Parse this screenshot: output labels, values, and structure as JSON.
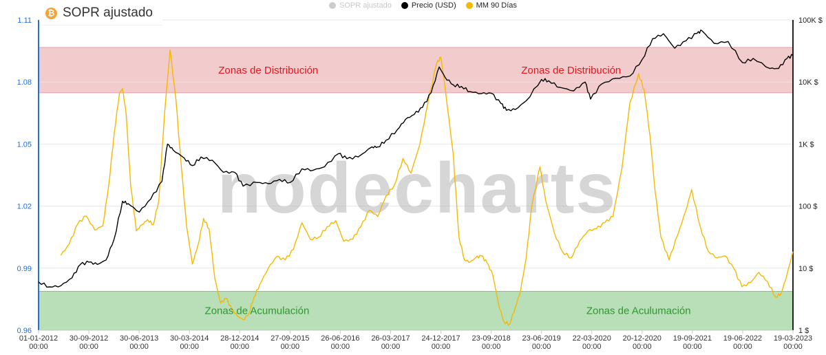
{
  "title": "SOPR ajustado",
  "icon": "bitcoin-icon",
  "watermark": "nodecharts",
  "legend": [
    {
      "name": "SOPR ajustado",
      "color": "#cccccc",
      "state": "hidden"
    },
    {
      "name": "Precio (USD)",
      "color": "#000000",
      "state": "visible"
    },
    {
      "name": "MM 90 Días",
      "color": "#f5b800",
      "state": "visible"
    }
  ],
  "zones": [
    {
      "label": "Zonas de Distribución",
      "color": "#e8a0a4",
      "text_color": "#e8141c",
      "y_range": [
        1.0748,
        1.0967
      ],
      "x_center": "2015-06-01"
    },
    {
      "label": "Zonas de Distribución",
      "color": "#e8a0a4",
      "text_color": "#e8141c",
      "y_range": [
        1.0748,
        1.0967
      ],
      "x_center": "2019-12-01"
    },
    {
      "label": "Zonas de Acumulación",
      "color": "#7ec47e",
      "text_color": "#2a9a2a",
      "y_range": [
        0.96,
        0.9788
      ],
      "x_center": "2015-04-01"
    },
    {
      "label": "Zonas de Aculumación",
      "color": "#7ec47e",
      "text_color": "#2a9a2a",
      "y_range": [
        0.96,
        0.9788
      ],
      "x_center": "2020-12-01"
    }
  ],
  "chart_data": {
    "type": "line",
    "x_axis": {
      "type": "date",
      "range": [
        "2012-01-01",
        "2023-03-19"
      ],
      "ticks": [
        {
          "date": "2012-01-01",
          "label": "01-01-2012",
          "time": "00:00"
        },
        {
          "date": "2012-09-30",
          "label": "30-09-2012",
          "time": "00:00"
        },
        {
          "date": "2013-06-30",
          "label": "30-06-2013",
          "time": "00:00"
        },
        {
          "date": "2014-03-30",
          "label": "30-03-2014",
          "time": "00:00"
        },
        {
          "date": "2014-12-28",
          "label": "28-12-2014",
          "time": "00:00"
        },
        {
          "date": "2015-09-27",
          "label": "27-09-2015",
          "time": "00:00"
        },
        {
          "date": "2016-06-26",
          "label": "26-06-2016",
          "time": "00:00"
        },
        {
          "date": "2017-03-26",
          "label": "26-03-2017",
          "time": "00:00"
        },
        {
          "date": "2017-12-24",
          "label": "24-12-2017",
          "time": "00:00"
        },
        {
          "date": "2018-09-23",
          "label": "23-09-2018",
          "time": "00:00"
        },
        {
          "date": "2019-06-23",
          "label": "23-06-2019",
          "time": "00:00"
        },
        {
          "date": "2020-03-22",
          "label": "22-03-2020",
          "time": "00:00"
        },
        {
          "date": "2020-12-20",
          "label": "20-12-2020",
          "time": "00:00"
        },
        {
          "date": "2021-09-19",
          "label": "19-09-2021",
          "time": "00:00"
        },
        {
          "date": "2022-06-19",
          "label": "19-06-2022",
          "time": "00:00"
        },
        {
          "date": "2023-03-19",
          "label": "19-03-2023",
          "time": "00:00"
        }
      ]
    },
    "y_left": {
      "range": [
        0.96,
        1.11
      ],
      "ticks": [
        0.96,
        0.99,
        1.02,
        1.05,
        1.08,
        1.11
      ],
      "tick_labels": [
        "0.96",
        "0.99",
        "1.02",
        "1.05",
        "1.08",
        "1.11"
      ],
      "color": "#1f6fd6"
    },
    "y_right": {
      "scale": "log",
      "range": [
        1,
        100000
      ],
      "ticks": [
        1,
        10,
        100,
        1000,
        10000,
        100000
      ],
      "tick_labels": [
        "1 $",
        "10 $",
        "100 $",
        "1K $",
        "10K $",
        "100K $"
      ]
    },
    "grid": "horizontal",
    "series": [
      {
        "name": "MM 90 Días",
        "axis": "left",
        "color": "#f5b800",
        "points": [
          [
            "2012-05-01",
            0.9962
          ],
          [
            "2012-06-15",
            1.0015
          ],
          [
            "2012-08-01",
            1.0115
          ],
          [
            "2012-09-15",
            1.0152
          ],
          [
            "2012-11-01",
            1.0085
          ],
          [
            "2012-12-15",
            1.0105
          ],
          [
            "2013-01-15",
            1.0295
          ],
          [
            "2013-02-15",
            1.0555
          ],
          [
            "2013-03-15",
            1.0745
          ],
          [
            "2013-04-01",
            1.0768
          ],
          [
            "2013-04-20",
            1.065
          ],
          [
            "2013-05-15",
            1.03
          ],
          [
            "2013-06-15",
            1.008
          ],
          [
            "2013-07-15",
            1.011
          ],
          [
            "2013-08-15",
            1.0135
          ],
          [
            "2013-09-15",
            1.011
          ],
          [
            "2013-10-15",
            1.023
          ],
          [
            "2013-11-15",
            1.065
          ],
          [
            "2013-12-15",
            1.0955
          ],
          [
            "2014-01-15",
            1.072
          ],
          [
            "2014-02-15",
            1.038
          ],
          [
            "2014-03-15",
            1.01
          ],
          [
            "2014-04-15",
            0.992
          ],
          [
            "2014-05-15",
            1.001
          ],
          [
            "2014-06-15",
            1.014
          ],
          [
            "2014-07-15",
            1.009
          ],
          [
            "2014-08-15",
            0.985
          ],
          [
            "2014-09-15",
            0.973
          ],
          [
            "2014-10-15",
            0.9755
          ],
          [
            "2014-11-15",
            0.97
          ],
          [
            "2014-12-15",
            0.967
          ],
          [
            "2015-01-15",
            0.965
          ],
          [
            "2015-02-15",
            0.968
          ],
          [
            "2015-03-15",
            0.976
          ],
          [
            "2015-04-15",
            0.982
          ],
          [
            "2015-06-01",
            0.99
          ],
          [
            "2015-07-15",
            0.9955
          ],
          [
            "2015-09-01",
            0.994
          ],
          [
            "2015-10-15",
            0.999
          ],
          [
            "2015-12-01",
            1.012
          ],
          [
            "2016-01-15",
            1.004
          ],
          [
            "2016-03-01",
            1.005
          ],
          [
            "2016-04-15",
            1.01
          ],
          [
            "2016-06-01",
            1.013
          ],
          [
            "2016-07-15",
            1.003
          ],
          [
            "2016-09-01",
            1.004
          ],
          [
            "2016-10-15",
            1.01
          ],
          [
            "2016-12-01",
            1.018
          ],
          [
            "2017-01-15",
            1.015
          ],
          [
            "2017-03-01",
            1.025
          ],
          [
            "2017-04-15",
            1.03
          ],
          [
            "2017-06-01",
            1.043
          ],
          [
            "2017-07-15",
            1.036
          ],
          [
            "2017-09-01",
            1.05
          ],
          [
            "2017-10-15",
            1.07
          ],
          [
            "2017-12-01",
            1.089
          ],
          [
            "2017-12-24",
            1.092
          ],
          [
            "2018-01-15",
            1.078
          ],
          [
            "2018-03-01",
            1.045
          ],
          [
            "2018-04-01",
            1.005
          ],
          [
            "2018-05-01",
            0.994
          ],
          [
            "2018-06-01",
            0.993
          ],
          [
            "2018-07-01",
            0.995
          ],
          [
            "2018-08-01",
            0.996
          ],
          [
            "2018-09-01",
            0.9925
          ],
          [
            "2018-10-01",
            0.987
          ],
          [
            "2018-11-01",
            0.973
          ],
          [
            "2018-12-01",
            0.964
          ],
          [
            "2019-01-01",
            0.963
          ],
          [
            "2019-02-01",
            0.971
          ],
          [
            "2019-03-01",
            0.979
          ],
          [
            "2019-04-01",
            0.995
          ],
          [
            "2019-05-01",
            1.02
          ],
          [
            "2019-06-15",
            1.039
          ],
          [
            "2019-07-15",
            1.023
          ],
          [
            "2019-09-01",
            1.007
          ],
          [
            "2019-10-15",
            0.998
          ],
          [
            "2019-12-01",
            0.995
          ],
          [
            "2020-01-15",
            1.003
          ],
          [
            "2020-03-01",
            1.008
          ],
          [
            "2020-04-15",
            1.009
          ],
          [
            "2020-06-01",
            1.012
          ],
          [
            "2020-07-15",
            1.015
          ],
          [
            "2020-09-01",
            1.038
          ],
          [
            "2020-10-15",
            1.07
          ],
          [
            "2020-12-01",
            1.084
          ],
          [
            "2021-01-01",
            1.076
          ],
          [
            "2021-02-01",
            1.054
          ],
          [
            "2021-03-01",
            1.027
          ],
          [
            "2021-04-01",
            1.005
          ],
          [
            "2021-05-15",
            0.994
          ],
          [
            "2021-07-01",
            1.006
          ],
          [
            "2021-08-15",
            1.018
          ],
          [
            "2021-09-15",
            1.028
          ],
          [
            "2021-11-01",
            1.01
          ],
          [
            "2021-12-15",
            0.998
          ],
          [
            "2022-02-01",
            0.995
          ],
          [
            "2022-03-15",
            0.996
          ],
          [
            "2022-05-01",
            0.99
          ],
          [
            "2022-06-15",
            0.981
          ],
          [
            "2022-08-01",
            0.983
          ],
          [
            "2022-09-15",
            0.988
          ],
          [
            "2022-11-01",
            0.9835
          ],
          [
            "2022-12-15",
            0.976
          ],
          [
            "2023-01-15",
            0.978
          ],
          [
            "2023-02-15",
            0.987
          ],
          [
            "2023-03-19",
            0.998
          ]
        ]
      },
      {
        "name": "Precio (USD)",
        "axis": "right",
        "color": "#000000",
        "points": [
          [
            "2012-01-01",
            6.0
          ],
          [
            "2012-03-01",
            5.0
          ],
          [
            "2012-05-01",
            5.2
          ],
          [
            "2012-07-01",
            7.0
          ],
          [
            "2012-08-15",
            11.5
          ],
          [
            "2012-10-01",
            12.5
          ],
          [
            "2012-11-15",
            11.5
          ],
          [
            "2013-01-01",
            13.5
          ],
          [
            "2013-02-15",
            30.0
          ],
          [
            "2013-04-01",
            120.0
          ],
          [
            "2013-05-01",
            110.0
          ],
          [
            "2013-07-01",
            80.0
          ],
          [
            "2013-09-01",
            130.0
          ],
          [
            "2013-11-01",
            250.0
          ],
          [
            "2013-12-01",
            1000.0
          ],
          [
            "2014-01-01",
            800.0
          ],
          [
            "2014-03-01",
            600.0
          ],
          [
            "2014-04-15",
            450.0
          ],
          [
            "2014-06-01",
            620.0
          ],
          [
            "2014-08-01",
            550.0
          ],
          [
            "2014-10-01",
            350.0
          ],
          [
            "2014-12-01",
            350.0
          ],
          [
            "2015-01-15",
            210.0
          ],
          [
            "2015-04-01",
            240.0
          ],
          [
            "2015-06-01",
            230.0
          ],
          [
            "2015-08-01",
            270.0
          ],
          [
            "2015-09-27",
            240.0
          ],
          [
            "2015-12-01",
            400.0
          ],
          [
            "2016-02-01",
            380.0
          ],
          [
            "2016-04-01",
            430.0
          ],
          [
            "2016-06-15",
            700.0
          ],
          [
            "2016-08-01",
            580.0
          ],
          [
            "2016-10-01",
            620.0
          ],
          [
            "2016-12-15",
            900.0
          ],
          [
            "2017-01-15",
            900.0
          ],
          [
            "2017-03-01",
            1150.0
          ],
          [
            "2017-05-01",
            1700.0
          ],
          [
            "2017-06-15",
            2500.0
          ],
          [
            "2017-08-01",
            3000.0
          ],
          [
            "2017-09-15",
            3900.0
          ],
          [
            "2017-11-01",
            6700.0
          ],
          [
            "2017-12-15",
            17500.0
          ],
          [
            "2018-01-15",
            12000.0
          ],
          [
            "2018-03-01",
            9000.0
          ],
          [
            "2018-04-15",
            8500.0
          ],
          [
            "2018-06-01",
            7000.0
          ],
          [
            "2018-08-01",
            6500.0
          ],
          [
            "2018-09-23",
            6600.0
          ],
          [
            "2018-11-15",
            4500.0
          ],
          [
            "2018-12-15",
            3500.0
          ],
          [
            "2019-02-01",
            3600.0
          ],
          [
            "2019-04-01",
            5000.0
          ],
          [
            "2019-06-23",
            11000.0
          ],
          [
            "2019-08-01",
            10500.0
          ],
          [
            "2019-10-01",
            8200.0
          ],
          [
            "2019-12-15",
            7200.0
          ],
          [
            "2020-02-15",
            10000.0
          ],
          [
            "2020-03-15",
            5300.0
          ],
          [
            "2020-05-15",
            9300.0
          ],
          [
            "2020-08-01",
            11500.0
          ],
          [
            "2020-10-15",
            12500.0
          ],
          [
            "2020-12-20",
            23000.0
          ],
          [
            "2021-02-15",
            50000.0
          ],
          [
            "2021-04-15",
            60000.0
          ],
          [
            "2021-06-15",
            35000.0
          ],
          [
            "2021-08-15",
            46000.0
          ],
          [
            "2021-10-15",
            61000.0
          ],
          [
            "2021-11-10",
            67000.0
          ],
          [
            "2022-01-15",
            42000.0
          ],
          [
            "2022-04-01",
            45000.0
          ],
          [
            "2022-06-19",
            20500.0
          ],
          [
            "2022-08-15",
            24000.0
          ],
          [
            "2022-11-15",
            16500.0
          ],
          [
            "2022-12-31",
            16500.0
          ],
          [
            "2023-02-15",
            24000.0
          ],
          [
            "2023-03-19",
            27000.0
          ]
        ]
      }
    ]
  }
}
